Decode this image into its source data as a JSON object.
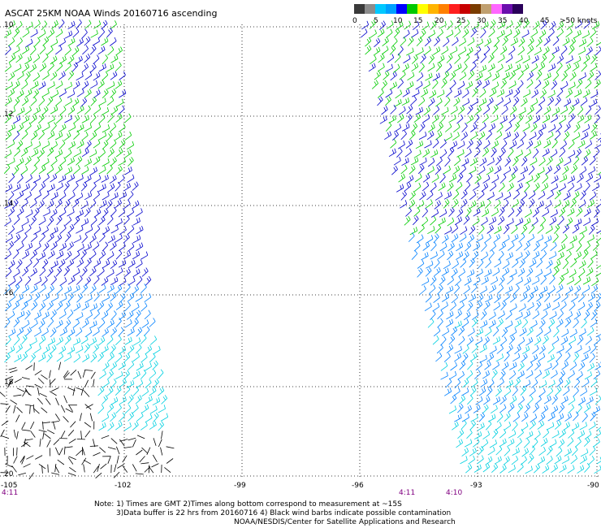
{
  "title": "ASCAT 25KM NOAA Winds 20160716 ascending",
  "legend": {
    "labels": [
      "0",
      "5",
      "10",
      "15",
      "20",
      "25",
      "30",
      "35",
      "40",
      "45",
      ">50 knots"
    ],
    "colors": [
      "#3a3a3a",
      "#8c8c8c",
      "#00c8ff",
      "#00a0ff",
      "#0000ff",
      "#00c800",
      "#ffff00",
      "#ffb400",
      "#ff7f00",
      "#ff1e1e",
      "#c80000",
      "#7a3c00",
      "#c0a070",
      "#ff66ff",
      "#6a0dad",
      "#2a005a"
    ]
  },
  "axes": {
    "lat_ticks": [
      "10",
      "12",
      "14",
      "16",
      "18",
      "20"
    ],
    "lon_ticks": [
      "-105",
      "-102",
      "-99",
      "-96",
      "-93",
      "-90"
    ]
  },
  "time_labels": [
    "4:11",
    "4:11",
    "4:10"
  ],
  "notes": {
    "line1": "Note: 1) Times are GMT 2)Times along bottom correspond to measurement at ~15S",
    "line2": "3)Data buffer is 22 hrs from 20160716 4) Black wind barbs indicate possible contamination",
    "line3": "NOAA/NESDIS/Center for Satellite Applications and Research"
  },
  "colors": {
    "green": "#00cc00",
    "blue": "#0000cc",
    "lightblue": "#0080ff",
    "cyan": "#00d0e0",
    "black": "#000000"
  }
}
